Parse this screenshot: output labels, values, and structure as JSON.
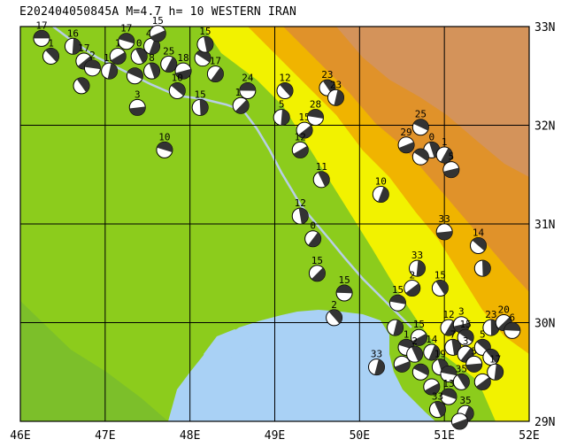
{
  "title": "E202404050845A M=4.7 h= 10 WESTERN IRAN",
  "axes": {
    "x_ticks": [
      "46E",
      "47E",
      "48E",
      "49E",
      "50E",
      "51E",
      "52E"
    ],
    "y_ticks": [
      "33N",
      "32N",
      "31N",
      "30N",
      "29N"
    ]
  },
  "colors": {
    "sea": "#a9d1f5",
    "lowland": "#8ccc1c",
    "coastal_green": "#7cbf2a",
    "foothill_yellow": "#f2f200",
    "upland_gold": "#f0b400",
    "mountain_orange": "#e0922a",
    "highland_tan": "#d4935a",
    "border_line": "#b8cfe6",
    "grid": "#000000"
  },
  "events": [
    {
      "lon": 46.25,
      "lat": 32.88,
      "label": "17"
    },
    {
      "lon": 46.36,
      "lat": 32.7,
      "label": "1"
    },
    {
      "lon": 46.62,
      "lat": 32.8,
      "label": "16"
    },
    {
      "lon": 46.75,
      "lat": 32.65,
      "label": "17"
    },
    {
      "lon": 46.85,
      "lat": 32.58,
      "label": "2"
    },
    {
      "lon": 46.72,
      "lat": 32.4,
      "label": ""
    },
    {
      "lon": 47.05,
      "lat": 32.55,
      "label": "12"
    },
    {
      "lon": 47.15,
      "lat": 32.7,
      "label": "1"
    },
    {
      "lon": 47.25,
      "lat": 32.85,
      "label": "17"
    },
    {
      "lon": 47.4,
      "lat": 32.7,
      "label": "0"
    },
    {
      "lon": 47.55,
      "lat": 32.8,
      "label": "45"
    },
    {
      "lon": 47.62,
      "lat": 32.93,
      "label": "15"
    },
    {
      "lon": 47.35,
      "lat": 32.5,
      "label": ""
    },
    {
      "lon": 47.55,
      "lat": 32.55,
      "label": "8"
    },
    {
      "lon": 47.75,
      "lat": 32.62,
      "label": "25"
    },
    {
      "lon": 47.92,
      "lat": 32.55,
      "label": "18"
    },
    {
      "lon": 48.15,
      "lat": 32.68,
      "label": "12"
    },
    {
      "lon": 48.18,
      "lat": 32.82,
      "label": "15"
    },
    {
      "lon": 48.3,
      "lat": 32.52,
      "label": "17"
    },
    {
      "lon": 47.38,
      "lat": 32.18,
      "label": "3"
    },
    {
      "lon": 47.85,
      "lat": 32.35,
      "label": "10"
    },
    {
      "lon": 48.12,
      "lat": 32.18,
      "label": "15"
    },
    {
      "lon": 48.6,
      "lat": 32.2,
      "label": "17"
    },
    {
      "lon": 48.68,
      "lat": 32.35,
      "label": "24"
    },
    {
      "lon": 49.12,
      "lat": 32.35,
      "label": "12"
    },
    {
      "lon": 49.08,
      "lat": 32.08,
      "label": "5"
    },
    {
      "lon": 49.35,
      "lat": 31.95,
      "label": "15"
    },
    {
      "lon": 49.48,
      "lat": 32.08,
      "label": "28"
    },
    {
      "lon": 49.62,
      "lat": 32.38,
      "label": "23"
    },
    {
      "lon": 49.72,
      "lat": 32.28,
      "label": "23"
    },
    {
      "lon": 49.3,
      "lat": 31.75,
      "label": "12"
    },
    {
      "lon": 47.7,
      "lat": 31.75,
      "label": "10"
    },
    {
      "lon": 49.55,
      "lat": 31.45,
      "label": "11"
    },
    {
      "lon": 50.25,
      "lat": 31.3,
      "label": "10"
    },
    {
      "lon": 50.55,
      "lat": 31.8,
      "label": "29"
    },
    {
      "lon": 50.72,
      "lat": 31.98,
      "label": "25"
    },
    {
      "lon": 50.85,
      "lat": 31.75,
      "label": "0"
    },
    {
      "lon": 51.0,
      "lat": 31.7,
      "label": "1"
    },
    {
      "lon": 51.08,
      "lat": 31.55,
      "label": "5"
    },
    {
      "lon": 50.72,
      "lat": 31.68,
      "label": ""
    },
    {
      "lon": 49.3,
      "lat": 31.08,
      "label": "12"
    },
    {
      "lon": 49.45,
      "lat": 30.85,
      "label": "0"
    },
    {
      "lon": 51.0,
      "lat": 30.92,
      "label": "33"
    },
    {
      "lon": 51.4,
      "lat": 30.78,
      "label": "14"
    },
    {
      "lon": 51.45,
      "lat": 30.55,
      "label": ""
    },
    {
      "lon": 49.5,
      "lat": 30.5,
      "label": "15"
    },
    {
      "lon": 49.82,
      "lat": 30.3,
      "label": "15"
    },
    {
      "lon": 49.7,
      "lat": 30.05,
      "label": "2"
    },
    {
      "lon": 50.68,
      "lat": 30.55,
      "label": "33"
    },
    {
      "lon": 50.62,
      "lat": 30.35,
      "label": "2"
    },
    {
      "lon": 50.45,
      "lat": 30.2,
      "label": "15"
    },
    {
      "lon": 50.95,
      "lat": 30.35,
      "label": "15"
    },
    {
      "lon": 50.42,
      "lat": 29.95,
      "label": ""
    },
    {
      "lon": 50.7,
      "lat": 29.85,
      "label": "15"
    },
    {
      "lon": 50.55,
      "lat": 29.75,
      "label": "1"
    },
    {
      "lon": 50.65,
      "lat": 29.68,
      "label": "2"
    },
    {
      "lon": 50.85,
      "lat": 29.7,
      "label": "14"
    },
    {
      "lon": 50.5,
      "lat": 29.58,
      "label": ""
    },
    {
      "lon": 50.72,
      "lat": 29.5,
      "label": ""
    },
    {
      "lon": 50.95,
      "lat": 29.55,
      "label": "19"
    },
    {
      "lon": 51.05,
      "lat": 29.95,
      "label": "12"
    },
    {
      "lon": 51.2,
      "lat": 29.98,
      "label": "3"
    },
    {
      "lon": 51.25,
      "lat": 29.85,
      "label": "15"
    },
    {
      "lon": 51.1,
      "lat": 29.75,
      "label": "7"
    },
    {
      "lon": 51.25,
      "lat": 29.68,
      "label": "3"
    },
    {
      "lon": 51.35,
      "lat": 29.58,
      "label": "5"
    },
    {
      "lon": 51.45,
      "lat": 29.75,
      "label": "5"
    },
    {
      "lon": 51.55,
      "lat": 29.95,
      "label": "23"
    },
    {
      "lon": 51.7,
      "lat": 30.0,
      "label": "20"
    },
    {
      "lon": 51.8,
      "lat": 29.92,
      "label": "6"
    },
    {
      "lon": 51.55,
      "lat": 29.65,
      "label": ""
    },
    {
      "lon": 51.6,
      "lat": 29.5,
      "label": "17"
    },
    {
      "lon": 51.45,
      "lat": 29.4,
      "label": ""
    },
    {
      "lon": 51.05,
      "lat": 29.48,
      "label": ""
    },
    {
      "lon": 51.2,
      "lat": 29.4,
      "label": "35"
    },
    {
      "lon": 50.2,
      "lat": 29.55,
      "label": "33"
    },
    {
      "lon": 50.85,
      "lat": 29.35,
      "label": ""
    },
    {
      "lon": 51.05,
      "lat": 29.25,
      "label": "13"
    },
    {
      "lon": 50.92,
      "lat": 29.12,
      "label": "33"
    },
    {
      "lon": 51.25,
      "lat": 29.08,
      "label": "35"
    },
    {
      "lon": 51.18,
      "lat": 29.0,
      "label": ""
    }
  ]
}
